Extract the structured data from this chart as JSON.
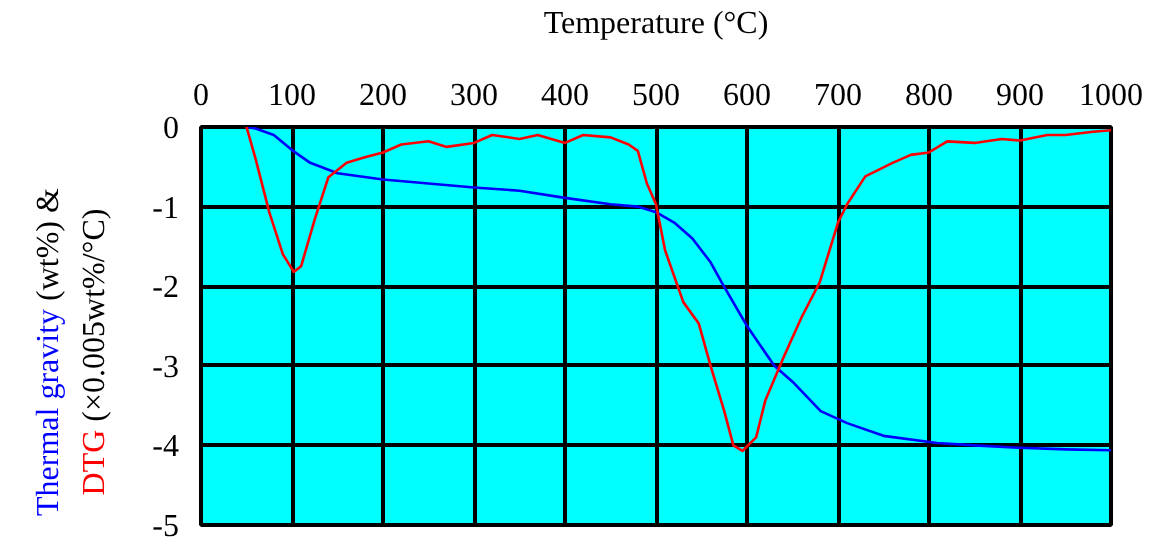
{
  "chart_data": {
    "type": "line",
    "xlabel": "Temperature (°C)",
    "ylabel": "Thermal gravity (wt%) & DTG (×0.005wt%/°C)",
    "xlim": [
      0,
      1000
    ],
    "ylim": [
      -5,
      0
    ],
    "xticks": [
      0,
      100,
      200,
      300,
      400,
      500,
      600,
      700,
      800,
      900,
      1000
    ],
    "yticks": [
      0,
      -1,
      -2,
      -3,
      -4,
      -5
    ],
    "grid": true,
    "marker": "none",
    "line_style": "solid",
    "series": [
      {
        "color": "#0000ff",
        "x": [
          50,
          60,
          80,
          100,
          120,
          150,
          200,
          250,
          300,
          350,
          400,
          450,
          480,
          500,
          520,
          540,
          560,
          572,
          600,
          630,
          650,
          681,
          710,
          750,
          809,
          850,
          900,
          950,
          1000
        ],
        "values": [
          0,
          -0.02,
          -0.1,
          -0.29,
          -0.45,
          -0.58,
          -0.66,
          -0.71,
          -0.76,
          -0.8,
          -0.89,
          -0.97,
          -1.0,
          -1.07,
          -1.2,
          -1.4,
          -1.7,
          -1.95,
          -2.5,
          -3.0,
          -3.2,
          -3.57,
          -3.72,
          -3.88,
          -3.97,
          -4.0,
          -4.03,
          -4.05,
          -4.06
        ]
      },
      {
        "color": "#ff0000",
        "x": [
          50,
          60,
          75,
          90,
          102,
          110,
          125,
          140,
          160,
          180,
          200,
          220,
          250,
          270,
          300,
          320,
          350,
          370,
          400,
          420,
          450,
          470,
          480,
          490,
          500,
          510,
          530,
          547,
          560,
          575,
          585,
          595,
          610,
          620,
          640,
          660,
          680,
          700,
          710,
          730,
          760,
          780,
          800,
          820,
          850,
          880,
          900,
          930,
          950,
          980,
          1000
        ],
        "values": [
          0,
          -0.4,
          -1.07,
          -1.6,
          -1.82,
          -1.75,
          -1.16,
          -0.63,
          -0.45,
          -0.38,
          -0.32,
          -0.22,
          -0.18,
          -0.25,
          -0.2,
          -0.1,
          -0.15,
          -0.1,
          -0.2,
          -0.1,
          -0.13,
          -0.22,
          -0.3,
          -0.71,
          -0.97,
          -1.55,
          -2.2,
          -2.47,
          -3.0,
          -3.57,
          -4.0,
          -4.07,
          -3.9,
          -3.44,
          -2.9,
          -2.39,
          -1.95,
          -1.2,
          -0.97,
          -0.62,
          -0.45,
          -0.35,
          -0.32,
          -0.18,
          -0.2,
          -0.15,
          -0.17,
          -0.1,
          -0.1,
          -0.06,
          -0.04
        ]
      }
    ]
  }
}
